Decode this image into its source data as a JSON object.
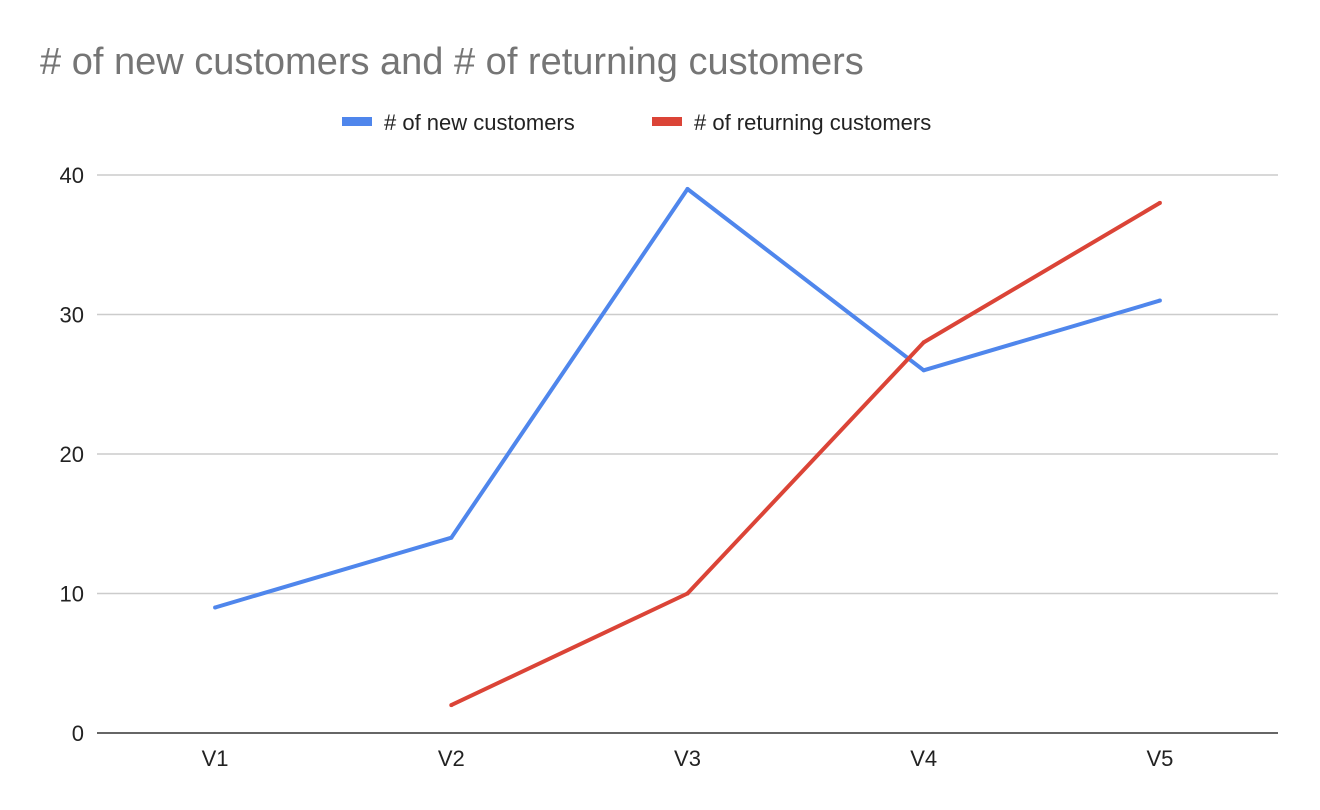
{
  "chart_data": {
    "type": "line",
    "title": "# of new customers and # of returning customers",
    "xlabel": "",
    "ylabel": "",
    "categories": [
      "V1",
      "V2",
      "V3",
      "V4",
      "V5"
    ],
    "ylim": [
      0,
      40
    ],
    "yticks": [
      "0",
      "10",
      "20",
      "30",
      "40"
    ],
    "grid": true,
    "legend_position": "top",
    "series": [
      {
        "name": "# of new customers",
        "color": "#4f86ec",
        "values": [
          9,
          14,
          39,
          26,
          31
        ]
      },
      {
        "name": "# of returning customers",
        "color": "#db4437",
        "values": [
          null,
          2,
          10,
          28,
          38
        ]
      }
    ]
  }
}
